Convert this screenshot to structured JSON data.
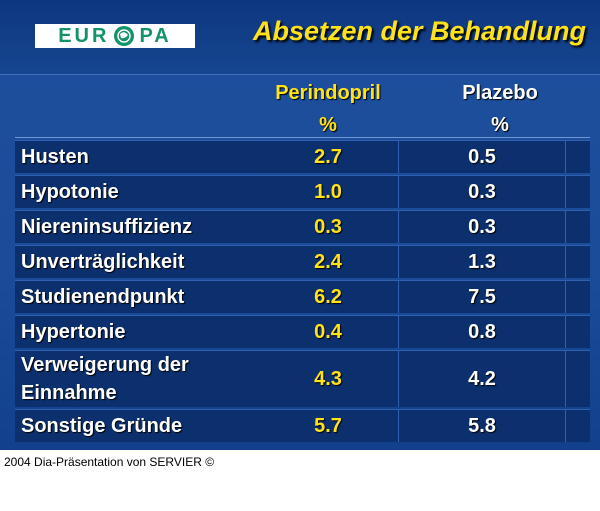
{
  "header": {
    "logo_left": "EUR",
    "logo_right": "PA",
    "title": "Absetzen der Behandlung"
  },
  "table": {
    "columns": [
      "Perindopril",
      "Plazebo"
    ],
    "units": [
      "%",
      "%"
    ],
    "rows": [
      [
        "Husten",
        "2.7",
        "0.5"
      ],
      [
        "Hypotonie",
        "1.0",
        "0.3"
      ],
      [
        "Niereninsuffizienz",
        "0.3",
        "0.3"
      ],
      [
        "Unverträglichkeit",
        "2.4",
        "1.3"
      ],
      [
        "Studienendpunkt",
        "6.2",
        "7.5"
      ],
      [
        "Hypertonie",
        "0.4",
        "0.8"
      ],
      [
        "Verweigerung der Einnahme",
        "4.3",
        "4.2"
      ],
      [
        "Sonstige Gründe",
        "5.7",
        "5.8"
      ]
    ]
  },
  "footer": "2004 Dia-Präsentation von SERVIER ©"
}
